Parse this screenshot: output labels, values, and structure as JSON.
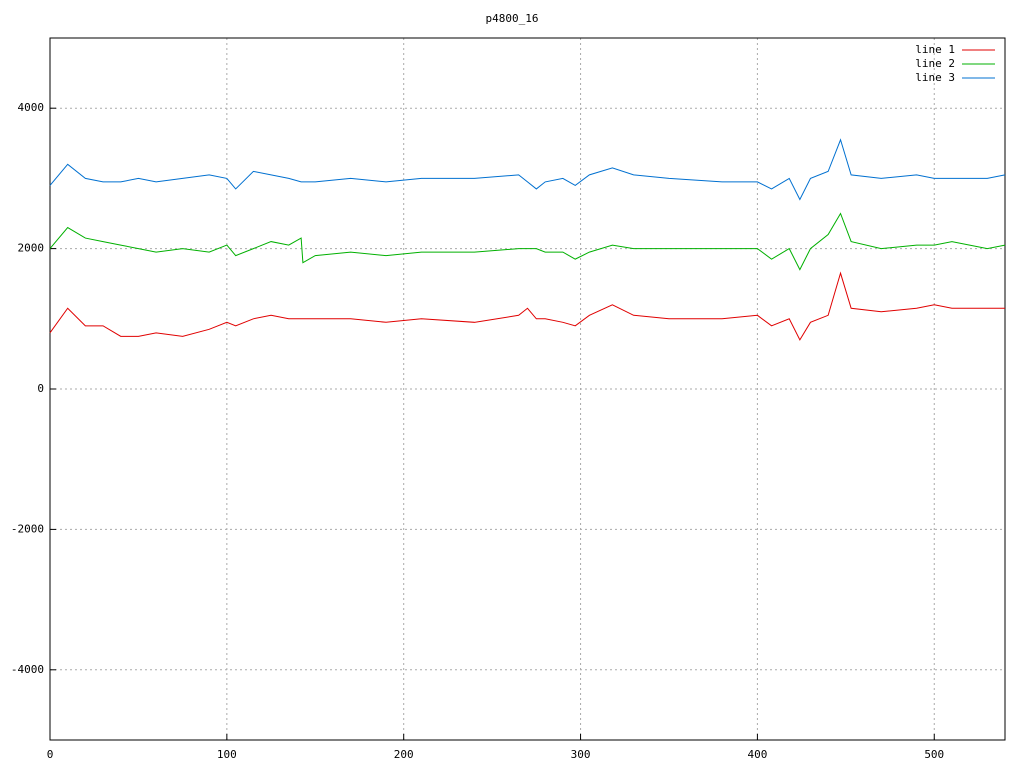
{
  "chart_data": {
    "type": "line",
    "title": "p4800_16",
    "x": [
      0,
      10,
      20,
      30,
      40,
      50,
      60,
      75,
      90,
      100,
      105,
      115,
      125,
      135,
      142,
      143,
      150,
      170,
      190,
      210,
      240,
      265,
      270,
      275,
      280,
      290,
      297,
      305,
      318,
      330,
      350,
      380,
      400,
      408,
      418,
      424,
      430,
      440,
      447,
      453,
      470,
      490,
      500,
      510,
      520,
      530,
      540
    ],
    "series": [
      {
        "name": "line 1",
        "color": "#e00000",
        "values": [
          800,
          1150,
          900,
          900,
          750,
          750,
          800,
          750,
          850,
          950,
          900,
          1000,
          1050,
          1000,
          1000,
          1000,
          1000,
          1000,
          950,
          1000,
          950,
          1050,
          1150,
          1000,
          1000,
          950,
          900,
          1050,
          1200,
          1050,
          1000,
          1000,
          1050,
          900,
          1000,
          700,
          950,
          1050,
          1650,
          1150,
          1100,
          1150,
          1200,
          1150,
          1150,
          1150,
          1150
        ]
      },
      {
        "name": "line 2",
        "color": "#00b000",
        "values": [
          2000,
          2300,
          2150,
          2100,
          2050,
          2000,
          1950,
          2000,
          1950,
          2050,
          1900,
          2000,
          2100,
          2050,
          2150,
          1800,
          1900,
          1950,
          1900,
          1950,
          1950,
          2000,
          2000,
          2000,
          1950,
          1950,
          1850,
          1950,
          2050,
          2000,
          2000,
          2000,
          2000,
          1850,
          2000,
          1700,
          2000,
          2200,
          2500,
          2100,
          2000,
          2050,
          2050,
          2100,
          2050,
          2000,
          2050
        ]
      },
      {
        "name": "line 3",
        "color": "#0070d0",
        "values": [
          2900,
          3200,
          3000,
          2950,
          2950,
          3000,
          2950,
          3000,
          3050,
          3000,
          2850,
          3100,
          3050,
          3000,
          2950,
          2950,
          2950,
          3000,
          2950,
          3000,
          3000,
          3050,
          2950,
          2850,
          2950,
          3000,
          2900,
          3050,
          3150,
          3050,
          3000,
          2950,
          2950,
          2850,
          3000,
          2700,
          3000,
          3100,
          3550,
          3050,
          3000,
          3050,
          3000,
          3000,
          3000,
          3000,
          3050
        ]
      }
    ],
    "xlim": [
      0,
      540
    ],
    "ylim": [
      -5000,
      5000
    ],
    "xticks": [
      0,
      100,
      200,
      300,
      400,
      500
    ],
    "yticks": [
      -4000,
      -2000,
      0,
      2000,
      4000
    ],
    "grid": true,
    "legend": "top-right"
  }
}
